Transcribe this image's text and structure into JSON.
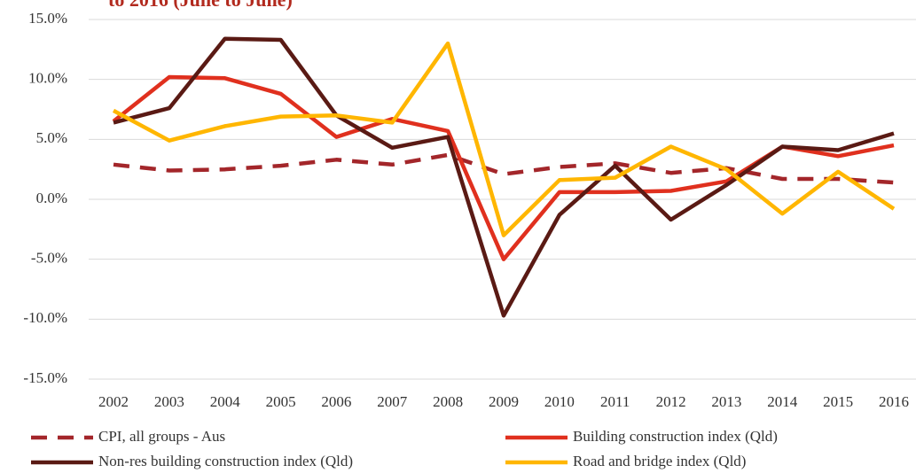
{
  "chart_data": {
    "type": "line",
    "title": "to 2016 (June to June)",
    "categories": [
      "2002",
      "2003",
      "2004",
      "2005",
      "2006",
      "2007",
      "2008",
      "2009",
      "2010",
      "2011",
      "2012",
      "2013",
      "2014",
      "2015",
      "2016"
    ],
    "series": [
      {
        "name": "CPI, all groups - Aus",
        "color": "#a3262a",
        "dashed": true,
        "values": [
          2.9,
          2.4,
          2.5,
          2.8,
          3.3,
          2.9,
          3.7,
          2.1,
          2.7,
          3.0,
          2.2,
          2.6,
          1.7,
          1.7,
          1.4
        ]
      },
      {
        "name": "Building construction index (Qld)",
        "color": "#e0301e",
        "dashed": false,
        "values": [
          6.5,
          10.2,
          10.1,
          8.8,
          5.2,
          6.7,
          5.7,
          -5.0,
          0.6,
          0.6,
          0.7,
          1.5,
          4.4,
          3.6,
          4.5
        ]
      },
      {
        "name": "Non-res building construction index (Qld)",
        "color": "#5a1a14",
        "dashed": false,
        "values": [
          6.4,
          7.6,
          13.4,
          13.3,
          7.0,
          4.3,
          5.2,
          -9.7,
          -1.3,
          2.8,
          -1.7,
          1.2,
          4.4,
          4.1,
          5.5
        ]
      },
      {
        "name": "Road and bridge index (Qld)",
        "color": "#ffb600",
        "dashed": false,
        "values": [
          7.4,
          4.9,
          6.1,
          6.9,
          7.0,
          6.4,
          13.0,
          -3.0,
          1.6,
          1.8,
          4.4,
          2.5,
          -1.2,
          2.3,
          -0.8
        ]
      }
    ],
    "ylim": [
      -15,
      15
    ],
    "yticks": [
      {
        "value": -15,
        "label": "-15.0%"
      },
      {
        "value": -10,
        "label": "-10.0%"
      },
      {
        "value": -5,
        "label": "-5.0%"
      },
      {
        "value": 0,
        "label": "0.0%"
      },
      {
        "value": 5,
        "label": "5.0%"
      },
      {
        "value": 10,
        "label": "10.0%"
      },
      {
        "value": 15,
        "label": "15.0%"
      }
    ],
    "grid": true
  }
}
